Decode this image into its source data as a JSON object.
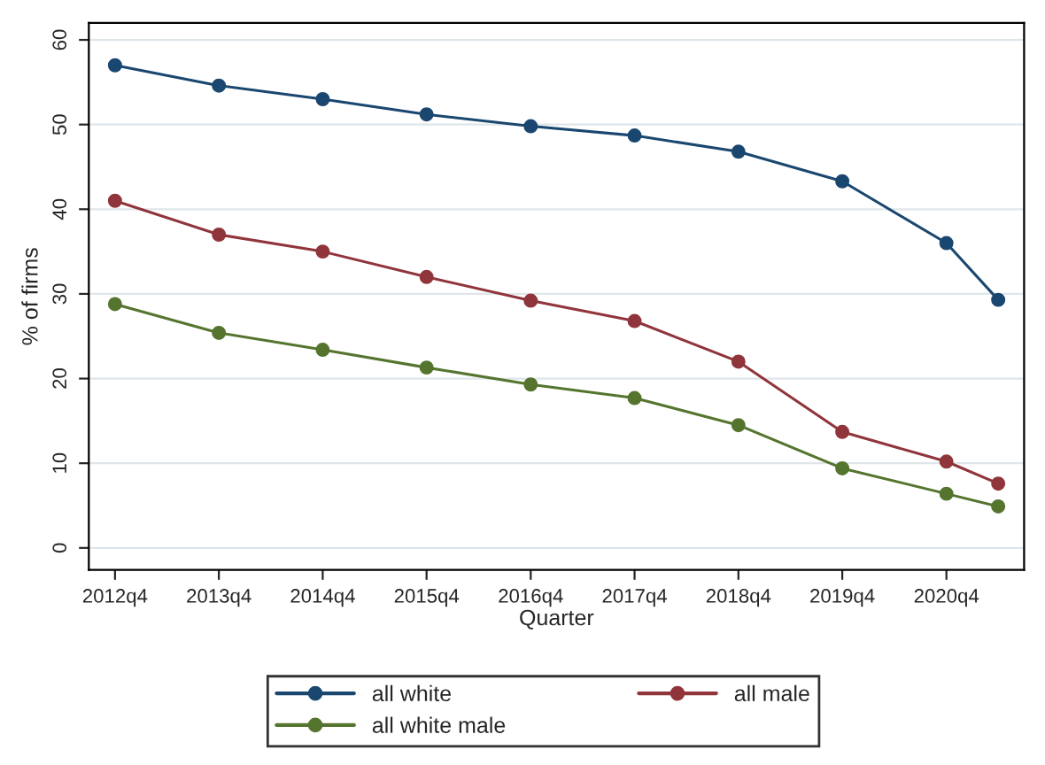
{
  "chart_data": {
    "type": "line",
    "xlabel": "Quarter",
    "ylabel": "% of firms",
    "x": [
      "2012-10",
      "2013-10",
      "2014-10",
      "2015-10",
      "2016-10",
      "2017-10",
      "2018-10",
      "2019-10",
      "2020-10",
      "2021-04"
    ],
    "series": [
      {
        "name": "all white",
        "color": "#1a476f",
        "values": [
          57,
          54.6,
          53,
          51.2,
          49.8,
          48.7,
          46.8,
          43.3,
          36,
          29.3
        ]
      },
      {
        "name": "all male",
        "color": "#90353b",
        "values": [
          41,
          37,
          35,
          32,
          29.2,
          26.8,
          22,
          13.7,
          10.2,
          7.6
        ]
      },
      {
        "name": "all white male",
        "color": "#55752f",
        "values": [
          28.8,
          25.4,
          23.4,
          21.3,
          19.3,
          17.7,
          14.5,
          9.4,
          6.4,
          4.9
        ]
      }
    ],
    "xlim": [
      "2012-07",
      "2021-07"
    ],
    "ylim": [
      -2.6,
      62
    ],
    "xticks": [
      {
        "value": "2012-10",
        "label": "2012q4"
      },
      {
        "value": "2013-10",
        "label": "2013q4"
      },
      {
        "value": "2014-10",
        "label": "2014q4"
      },
      {
        "value": "2015-10",
        "label": "2015q4"
      },
      {
        "value": "2016-10",
        "label": "2016q4"
      },
      {
        "value": "2017-10",
        "label": "2017q4"
      },
      {
        "value": "2018-10",
        "label": "2018q4"
      },
      {
        "value": "2019-10",
        "label": "2019q4"
      },
      {
        "value": "2020-10",
        "label": "2020q4"
      }
    ],
    "yticks": [
      0,
      10,
      20,
      30,
      40,
      50,
      60
    ],
    "grid": "y",
    "legend": "bottom",
    "marker": "circle",
    "line_style": "solid"
  }
}
